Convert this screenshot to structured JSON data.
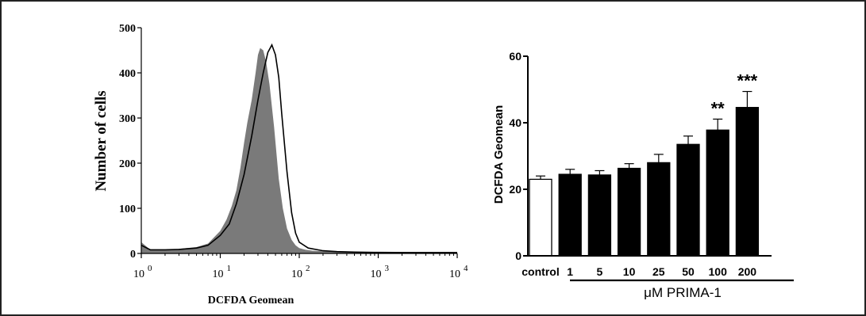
{
  "chart_data": [
    {
      "type": "area",
      "xlabel": "DCFDA Geomean",
      "ylabel": "Number of cells",
      "x_scale": "log",
      "xlim": [
        1,
        10000
      ],
      "ylim": [
        0,
        500
      ],
      "x_ticks": [
        {
          "base": "10",
          "exp": "0"
        },
        {
          "base": "10",
          "exp": "1"
        },
        {
          "base": "10",
          "exp": "2"
        },
        {
          "base": "10",
          "exp": "3"
        },
        {
          "base": "10",
          "exp": "4"
        }
      ],
      "y_ticks": [
        "0",
        "100",
        "200",
        "300",
        "400",
        "500"
      ],
      "grid": false,
      "legend": "none",
      "series": [
        {
          "style": "filled",
          "color": "#7a7a7a",
          "x": [
            1,
            1.3,
            2,
            3,
            5,
            7,
            10,
            12,
            14,
            16,
            18,
            20,
            22,
            25,
            28,
            30,
            32,
            35,
            38,
            42,
            48,
            55,
            62,
            70,
            80,
            90,
            100,
            120,
            150,
            200,
            300,
            500,
            1000,
            3000,
            10000
          ],
          "y": [
            25,
            8,
            8,
            10,
            14,
            22,
            50,
            75,
            105,
            140,
            190,
            245,
            290,
            340,
            400,
            440,
            455,
            450,
            425,
            375,
            280,
            165,
            100,
            55,
            30,
            18,
            12,
            8,
            6,
            5,
            5,
            4,
            4,
            3,
            3
          ]
        },
        {
          "style": "outline",
          "color": "#000000",
          "x": [
            1,
            1.3,
            2,
            3,
            5,
            7,
            10,
            13,
            16,
            20,
            25,
            30,
            35,
            40,
            45,
            50,
            55,
            60,
            70,
            80,
            90,
            100,
            130,
            200,
            300,
            500,
            1000,
            3000,
            10000
          ],
          "y": [
            18,
            8,
            8,
            9,
            12,
            18,
            40,
            65,
            110,
            175,
            260,
            340,
            400,
            445,
            462,
            440,
            390,
            310,
            180,
            90,
            45,
            25,
            12,
            6,
            4,
            3,
            2,
            2,
            2
          ]
        }
      ]
    },
    {
      "type": "bar",
      "ylabel": "DCFDA Geomean",
      "ylim": [
        0,
        60
      ],
      "y_ticks": [
        "0",
        "20",
        "40",
        "60"
      ],
      "categories": [
        "control",
        "1",
        "5",
        "10",
        "25",
        "50",
        "100",
        "200"
      ],
      "values": [
        23,
        24.5,
        24.3,
        26.3,
        28,
        33.5,
        37.8,
        44.6
      ],
      "errors": [
        1,
        1.5,
        1.3,
        1.4,
        2.5,
        2.5,
        3.3,
        4.8
      ],
      "fills": [
        "#ffffff",
        "#000000",
        "#000000",
        "#000000",
        "#000000",
        "#000000",
        "#000000",
        "#000000"
      ],
      "significance": [
        "",
        "",
        "",
        "",
        "",
        "",
        "**",
        "***"
      ],
      "group_label": "μM PRIMA-1",
      "grid": false,
      "legend": "none"
    }
  ]
}
